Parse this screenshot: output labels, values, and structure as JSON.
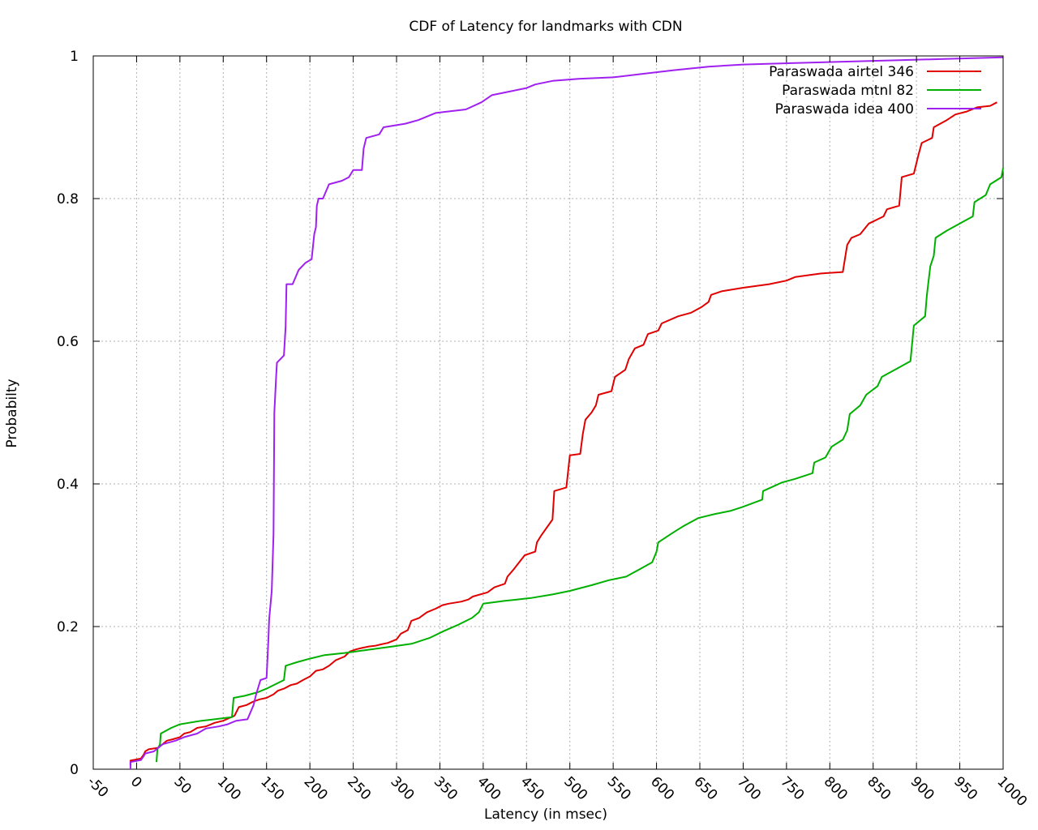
{
  "chart_data": {
    "type": "line",
    "title": "CDF of Latency for landmarks with CDN",
    "xlabel": "Latency (in msec)",
    "ylabel": "Probabilty",
    "xlim": [
      -50,
      1000
    ],
    "ylim": [
      0,
      1
    ],
    "x_ticks": [
      "-50",
      "0",
      "50",
      "100",
      "150",
      "200",
      "250",
      "300",
      "350",
      "400",
      "450",
      "500",
      "550",
      "600",
      "650",
      "700",
      "750",
      "800",
      "850",
      "900",
      "950",
      "1000"
    ],
    "y_ticks": [
      "0",
      "0.2",
      "0.4",
      "0.6",
      "0.8",
      "1"
    ],
    "grid": true,
    "legend_position": "top-right",
    "series": [
      {
        "name": "Paraswada airtel 346",
        "color": "#e00000",
        "points": [
          [
            -7,
            0.005
          ],
          [
            -7,
            0.012
          ],
          [
            5,
            0.015
          ],
          [
            8,
            0.02
          ],
          [
            10,
            0.025
          ],
          [
            14,
            0.028
          ],
          [
            25,
            0.03
          ],
          [
            30,
            0.035
          ],
          [
            35,
            0.04
          ],
          [
            42,
            0.042
          ],
          [
            50,
            0.045
          ],
          [
            55,
            0.05
          ],
          [
            62,
            0.052
          ],
          [
            70,
            0.058
          ],
          [
            80,
            0.06
          ],
          [
            90,
            0.065
          ],
          [
            100,
            0.068
          ],
          [
            113,
            0.075
          ],
          [
            118,
            0.087
          ],
          [
            127,
            0.09
          ],
          [
            135,
            0.095
          ],
          [
            142,
            0.098
          ],
          [
            150,
            0.1
          ],
          [
            158,
            0.105
          ],
          [
            163,
            0.11
          ],
          [
            170,
            0.113
          ],
          [
            178,
            0.118
          ],
          [
            185,
            0.12
          ],
          [
            192,
            0.125
          ],
          [
            200,
            0.13
          ],
          [
            207,
            0.138
          ],
          [
            215,
            0.14
          ],
          [
            222,
            0.145
          ],
          [
            230,
            0.153
          ],
          [
            240,
            0.158
          ],
          [
            246,
            0.165
          ],
          [
            253,
            0.168
          ],
          [
            260,
            0.17
          ],
          [
            268,
            0.172
          ],
          [
            275,
            0.173
          ],
          [
            282,
            0.175
          ],
          [
            290,
            0.177
          ],
          [
            300,
            0.182
          ],
          [
            305,
            0.19
          ],
          [
            313,
            0.195
          ],
          [
            317,
            0.208
          ],
          [
            326,
            0.212
          ],
          [
            335,
            0.22
          ],
          [
            345,
            0.225
          ],
          [
            353,
            0.23
          ],
          [
            360,
            0.232
          ],
          [
            375,
            0.235
          ],
          [
            383,
            0.238
          ],
          [
            388,
            0.242
          ],
          [
            405,
            0.248
          ],
          [
            413,
            0.255
          ],
          [
            425,
            0.26
          ],
          [
            428,
            0.27
          ],
          [
            435,
            0.28
          ],
          [
            448,
            0.3
          ],
          [
            460,
            0.305
          ],
          [
            462,
            0.318
          ],
          [
            467,
            0.328
          ],
          [
            480,
            0.35
          ],
          [
            482,
            0.39
          ],
          [
            496,
            0.395
          ],
          [
            500,
            0.44
          ],
          [
            512,
            0.442
          ],
          [
            515,
            0.47
          ],
          [
            518,
            0.49
          ],
          [
            525,
            0.5
          ],
          [
            530,
            0.51
          ],
          [
            533,
            0.525
          ],
          [
            548,
            0.53
          ],
          [
            552,
            0.55
          ],
          [
            564,
            0.56
          ],
          [
            568,
            0.575
          ],
          [
            575,
            0.59
          ],
          [
            585,
            0.595
          ],
          [
            590,
            0.61
          ],
          [
            602,
            0.615
          ],
          [
            606,
            0.625
          ],
          [
            625,
            0.635
          ],
          [
            640,
            0.64
          ],
          [
            652,
            0.648
          ],
          [
            660,
            0.655
          ],
          [
            663,
            0.665
          ],
          [
            675,
            0.67
          ],
          [
            700,
            0.675
          ],
          [
            730,
            0.68
          ],
          [
            750,
            0.685
          ],
          [
            760,
            0.69
          ],
          [
            790,
            0.695
          ],
          [
            815,
            0.697
          ],
          [
            820,
            0.735
          ],
          [
            825,
            0.745
          ],
          [
            835,
            0.75
          ],
          [
            845,
            0.765
          ],
          [
            862,
            0.775
          ],
          [
            866,
            0.785
          ],
          [
            880,
            0.79
          ],
          [
            883,
            0.83
          ],
          [
            897,
            0.835
          ],
          [
            902,
            0.86
          ],
          [
            906,
            0.878
          ],
          [
            918,
            0.885
          ],
          [
            920,
            0.9
          ],
          [
            935,
            0.91
          ],
          [
            945,
            0.918
          ],
          [
            958,
            0.922
          ],
          [
            970,
            0.928
          ],
          [
            985,
            0.93
          ],
          [
            993,
            0.935
          ]
        ]
      },
      {
        "name": "Paraswada mtnl 82",
        "color": "#00b000",
        "points": [
          [
            23,
            0.01
          ],
          [
            24,
            0.028
          ],
          [
            27,
            0.035
          ],
          [
            28,
            0.05
          ],
          [
            40,
            0.058
          ],
          [
            50,
            0.063
          ],
          [
            60,
            0.065
          ],
          [
            75,
            0.068
          ],
          [
            90,
            0.07
          ],
          [
            110,
            0.073
          ],
          [
            112,
            0.1
          ],
          [
            125,
            0.103
          ],
          [
            140,
            0.108
          ],
          [
            150,
            0.113
          ],
          [
            170,
            0.125
          ],
          [
            172,
            0.145
          ],
          [
            185,
            0.15
          ],
          [
            200,
            0.155
          ],
          [
            217,
            0.16
          ],
          [
            240,
            0.163
          ],
          [
            270,
            0.168
          ],
          [
            295,
            0.172
          ],
          [
            318,
            0.176
          ],
          [
            338,
            0.184
          ],
          [
            355,
            0.194
          ],
          [
            372,
            0.203
          ],
          [
            387,
            0.212
          ],
          [
            395,
            0.22
          ],
          [
            400,
            0.232
          ],
          [
            425,
            0.236
          ],
          [
            455,
            0.24
          ],
          [
            480,
            0.245
          ],
          [
            500,
            0.25
          ],
          [
            525,
            0.258
          ],
          [
            545,
            0.265
          ],
          [
            565,
            0.27
          ],
          [
            580,
            0.28
          ],
          [
            595,
            0.29
          ],
          [
            600,
            0.305
          ],
          [
            602,
            0.318
          ],
          [
            617,
            0.33
          ],
          [
            630,
            0.34
          ],
          [
            648,
            0.352
          ],
          [
            668,
            0.358
          ],
          [
            685,
            0.362
          ],
          [
            700,
            0.368
          ],
          [
            722,
            0.378
          ],
          [
            723,
            0.39
          ],
          [
            745,
            0.402
          ],
          [
            760,
            0.407
          ],
          [
            780,
            0.415
          ],
          [
            782,
            0.43
          ],
          [
            795,
            0.437
          ],
          [
            802,
            0.452
          ],
          [
            815,
            0.462
          ],
          [
            820,
            0.475
          ],
          [
            823,
            0.498
          ],
          [
            835,
            0.51
          ],
          [
            842,
            0.525
          ],
          [
            855,
            0.537
          ],
          [
            860,
            0.55
          ],
          [
            875,
            0.56
          ],
          [
            893,
            0.572
          ],
          [
            897,
            0.622
          ],
          [
            910,
            0.635
          ],
          [
            912,
            0.665
          ],
          [
            916,
            0.705
          ],
          [
            920,
            0.72
          ],
          [
            922,
            0.745
          ],
          [
            935,
            0.755
          ],
          [
            950,
            0.765
          ],
          [
            965,
            0.775
          ],
          [
            967,
            0.795
          ],
          [
            980,
            0.805
          ],
          [
            985,
            0.82
          ],
          [
            998,
            0.83
          ],
          [
            1000,
            0.843
          ]
        ]
      },
      {
        "name": "Paraswada idea 400",
        "color": "#a020f0",
        "points": [
          [
            -7,
            0.0
          ],
          [
            -7,
            0.01
          ],
          [
            5,
            0.013
          ],
          [
            8,
            0.018
          ],
          [
            10,
            0.022
          ],
          [
            20,
            0.025
          ],
          [
            25,
            0.03
          ],
          [
            30,
            0.035
          ],
          [
            45,
            0.04
          ],
          [
            55,
            0.045
          ],
          [
            70,
            0.05
          ],
          [
            80,
            0.057
          ],
          [
            95,
            0.06
          ],
          [
            105,
            0.063
          ],
          [
            115,
            0.068
          ],
          [
            128,
            0.07
          ],
          [
            135,
            0.09
          ],
          [
            138,
            0.105
          ],
          [
            143,
            0.125
          ],
          [
            150,
            0.128
          ],
          [
            152,
            0.18
          ],
          [
            153,
            0.21
          ],
          [
            156,
            0.25
          ],
          [
            158,
            0.33
          ],
          [
            159,
            0.5
          ],
          [
            161,
            0.55
          ],
          [
            162,
            0.57
          ],
          [
            170,
            0.58
          ],
          [
            172,
            0.62
          ],
          [
            173,
            0.68
          ],
          [
            180,
            0.68
          ],
          [
            187,
            0.7
          ],
          [
            195,
            0.71
          ],
          [
            202,
            0.715
          ],
          [
            205,
            0.75
          ],
          [
            207,
            0.76
          ],
          [
            208,
            0.79
          ],
          [
            210,
            0.8
          ],
          [
            215,
            0.8
          ],
          [
            222,
            0.82
          ],
          [
            237,
            0.825
          ],
          [
            245,
            0.83
          ],
          [
            250,
            0.84
          ],
          [
            260,
            0.84
          ],
          [
            262,
            0.87
          ],
          [
            265,
            0.885
          ],
          [
            280,
            0.89
          ],
          [
            285,
            0.9
          ],
          [
            310,
            0.905
          ],
          [
            325,
            0.91
          ],
          [
            345,
            0.92
          ],
          [
            380,
            0.925
          ],
          [
            398,
            0.935
          ],
          [
            410,
            0.945
          ],
          [
            430,
            0.95
          ],
          [
            450,
            0.955
          ],
          [
            460,
            0.96
          ],
          [
            480,
            0.965
          ],
          [
            510,
            0.968
          ],
          [
            550,
            0.97
          ],
          [
            585,
            0.975
          ],
          [
            620,
            0.98
          ],
          [
            660,
            0.985
          ],
          [
            700,
            0.988
          ],
          [
            760,
            0.99
          ],
          [
            820,
            0.992
          ],
          [
            880,
            0.994
          ],
          [
            940,
            0.996
          ],
          [
            1000,
            0.998
          ]
        ]
      }
    ]
  }
}
